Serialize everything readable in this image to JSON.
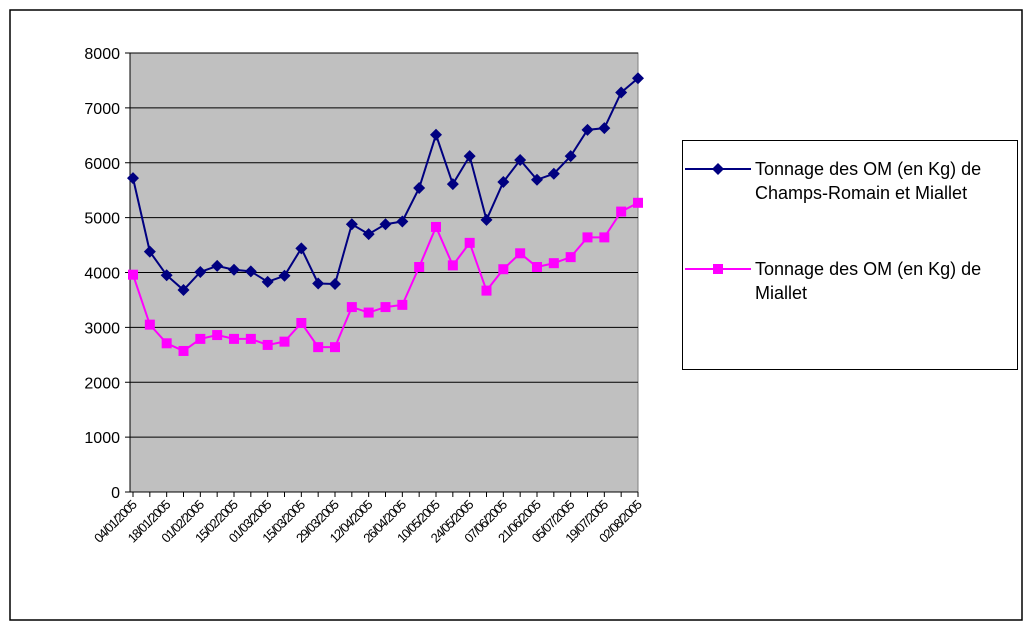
{
  "chart_data": {
    "type": "line",
    "categories": [
      "04/01/2005",
      null,
      "18/01/2005",
      null,
      "01/02/2005",
      null,
      "15/02/2005",
      null,
      "01/03/2005",
      null,
      "15/03/2005",
      null,
      "29/03/2005",
      null,
      "12/04/2005",
      null,
      "26/04/2005",
      null,
      "10/05/2005",
      null,
      "24/05/2005",
      null,
      "07/06/2005",
      null,
      "21/06/2005",
      null,
      "05/07/2005",
      null,
      "19/07/2005",
      null,
      "02/08/2005"
    ],
    "series": [
      {
        "name": "Tonnage des OM (en Kg) de Champs-Romain et Miallet",
        "color": "#000080",
        "marker": "diamond",
        "values": [
          5720,
          4380,
          3950,
          3680,
          4010,
          4120,
          4050,
          4020,
          3830,
          3940,
          4440,
          3800,
          3790,
          4880,
          4700,
          4880,
          4930,
          5540,
          6510,
          5610,
          6120,
          4960,
          5650,
          6050,
          5690,
          5800,
          6120,
          6600,
          6630,
          7280,
          7540
        ]
      },
      {
        "name": "Tonnage des OM (en Kg) de Miallet",
        "color": "#ff00ff",
        "marker": "square",
        "values": [
          3960,
          3050,
          2710,
          2570,
          2790,
          2860,
          2790,
          2790,
          2680,
          2740,
          3080,
          2640,
          2640,
          3370,
          3270,
          3370,
          3410,
          4100,
          4830,
          4130,
          4540,
          3670,
          4060,
          4350,
          4100,
          4170,
          4280,
          4640,
          4640,
          5110,
          5270
        ]
      }
    ],
    "ylim": [
      0,
      8000
    ],
    "yticks": [
      0,
      1000,
      2000,
      3000,
      4000,
      5000,
      6000,
      7000,
      8000
    ],
    "grid": true,
    "plot_background": "#c0c0c0",
    "legend": "right"
  }
}
